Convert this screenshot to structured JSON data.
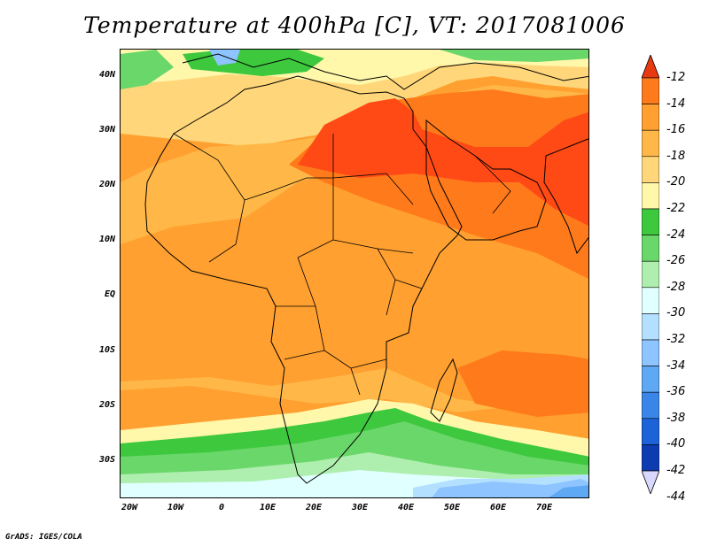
{
  "title": "Temperature at 400hPa [C], VT: 2017081006",
  "credit": "GrADS: IGES/COLA",
  "lat_labels": [
    "40N",
    "30N",
    "20N",
    "10N",
    "EQ",
    "10S",
    "20S",
    "30S"
  ],
  "lon_labels": [
    "20W",
    "10W",
    "0",
    "10E",
    "20E",
    "30E",
    "40E",
    "50E",
    "60E",
    "70E"
  ],
  "colorbar": {
    "labels": [
      "-12",
      "-14",
      "-16",
      "-18",
      "-20",
      "-22",
      "-24",
      "-26",
      "-28",
      "-30",
      "-32",
      "-34",
      "-36",
      "-38",
      "-40",
      "-42",
      "-44"
    ],
    "colors": [
      "#ff4a16",
      "#ff7a1a",
      "#ffa030",
      "#ffb848",
      "#ffd77a",
      "#fff7aa",
      "#3ec83e",
      "#6ad76a",
      "#aeeeae",
      "#e0ffff",
      "#b4e0ff",
      "#8ec4ff",
      "#5ea8f4",
      "#3a86e8",
      "#1c62d8",
      "#0d3cb0",
      "#0a1580"
    ],
    "top_arrow_color": "#e83a10",
    "bottom_arrow_color": "#d8d8ff"
  },
  "map_colors": {
    "warmest": "#ff4a16",
    "warm": "#ff7a1a",
    "mid": "#ffa030",
    "light": "#ffb848",
    "pale": "#ffd77a",
    "cream": "#fff7aa",
    "green": "#3ec83e",
    "lightgreen": "#6ad76a",
    "palegreen": "#aeeeae",
    "lightcyan": "#e0ffff",
    "lightblue": "#b4e0ff",
    "blue": "#8ec4ff",
    "deepblue": "#5ea8f4"
  }
}
